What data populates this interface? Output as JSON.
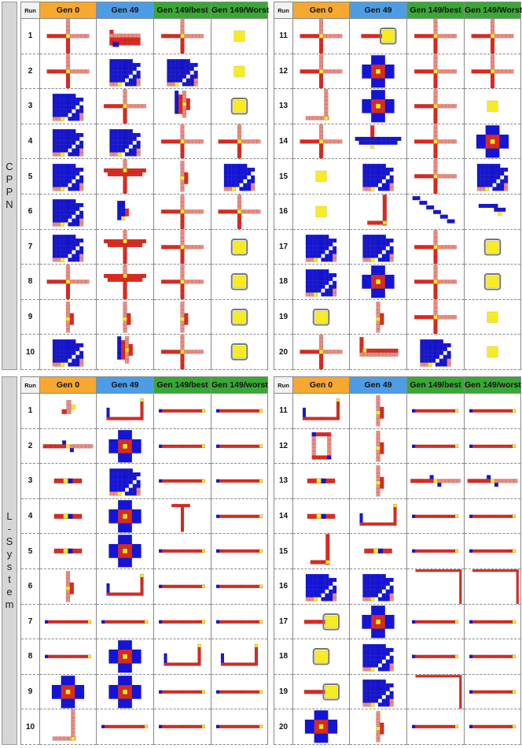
{
  "columns": {
    "cppn": [
      "Run",
      "Gen 0",
      "Gen 49",
      "Gen 149/best",
      "Gen 149/Worst"
    ],
    "lsystem": [
      "Run",
      "Gen 0",
      "Gen 49",
      "Gen 149/best",
      "Gen 149/worst"
    ]
  },
  "colors": {
    "gen0": "#f6a830",
    "gen49": "#4d9de6",
    "gen149": "#39a835",
    "red": "#e0281e",
    "pink": "#ee8a7e",
    "blue": "#1414d8",
    "yellow": "#f7ec22"
  },
  "sections": [
    {
      "id": "cppn",
      "label_letters": [
        "C",
        "P",
        "P",
        "N"
      ],
      "halves": [
        {
          "runs": [
            "1",
            "2",
            "3",
            "4",
            "5",
            "6",
            "7",
            "8",
            "9",
            "10"
          ],
          "cells": [
            [
              "cross",
              "bar-l",
              "cross",
              "core"
            ],
            [
              "cross",
              "blob-b",
              "blob-b",
              "core"
            ],
            [
              "blob-b",
              "cross",
              "twist",
              "frame"
            ],
            [
              "blob-b",
              "blob-b",
              "cross",
              "cross"
            ],
            [
              "blob-b",
              "tee",
              "bar-v",
              "blob-b"
            ],
            [
              "blob-b",
              "blob-y",
              "cross",
              "cross"
            ],
            [
              "blob-b",
              "tee",
              "cross",
              "frame"
            ],
            [
              "cross",
              "tee",
              "cross",
              "frame"
            ],
            [
              "bar-v",
              "bar-v",
              "bar-v",
              "frame"
            ],
            [
              "blob-b",
              "twist",
              "cross",
              "frame"
            ]
          ]
        },
        {
          "runs": [
            "11",
            "12",
            "13",
            "14",
            "15",
            "16",
            "17",
            "18",
            "19",
            "20"
          ],
          "cells": [
            [
              "cross",
              "frame-bar",
              "cross",
              "cross"
            ],
            [
              "cross",
              "plus-b",
              "cross",
              "cross"
            ],
            [
              "ell",
              "plus-b",
              "cross",
              "core"
            ],
            [
              "cross",
              "bar-b",
              "cross",
              "plus-b"
            ],
            [
              "core",
              "blob-b",
              "cross",
              "blob-b"
            ],
            [
              "core",
              "ell-r",
              "diag",
              "diag-s"
            ],
            [
              "blob-b",
              "blob-b",
              "cross",
              "frame"
            ],
            [
              "blob-b",
              "plus-b",
              "cross",
              "frame"
            ],
            [
              "frame",
              "bar-v",
              "cross",
              "core"
            ],
            [
              "cross",
              "tee-r",
              "blob-b",
              "core"
            ]
          ]
        }
      ]
    },
    {
      "id": "lsystem",
      "label_letters": [
        "L",
        "-",
        "S",
        "y",
        "s",
        "t",
        "e",
        "m"
      ],
      "halves": [
        {
          "runs": [
            "1",
            "2",
            "3",
            "4",
            "5",
            "6",
            "7",
            "8",
            "9",
            "10"
          ],
          "cells": [
            [
              "ell-s",
              "hook",
              "rail",
              "rail"
            ],
            [
              "cross-h",
              "plus-b",
              "rail",
              "rail"
            ],
            [
              "bar-h",
              "blob-b",
              "rail",
              "rail"
            ],
            [
              "bar-h",
              "plus-b",
              "tee-d",
              "rail"
            ],
            [
              "bar-h",
              "plus-b",
              "rail",
              "rail"
            ],
            [
              "bar-v",
              "hook",
              "rail",
              "rail"
            ],
            [
              "rail",
              "rail",
              "rail",
              "rail"
            ],
            [
              "rail",
              "plus-b",
              "hook",
              "hook"
            ],
            [
              "plus-b",
              "plus-b",
              "rail",
              "rail"
            ],
            [
              "ell",
              "rail",
              "rail",
              "rail"
            ]
          ]
        },
        {
          "runs": [
            "11",
            "12",
            "13",
            "14",
            "15",
            "16",
            "17",
            "18",
            "19",
            "20"
          ],
          "cells": [
            [
              "hook",
              "bar-v",
              "rail",
              "rail"
            ],
            [
              "ring",
              "bar-v",
              "rail",
              "rail"
            ],
            [
              "bar-h",
              "bar-v",
              "cross-h",
              "cross-h"
            ],
            [
              "bar-h",
              "hook",
              "rail",
              "rail"
            ],
            [
              "ell-r",
              "bar-h",
              "rail",
              "rail"
            ],
            [
              "blob-b",
              "blob-b",
              "ell-c",
              "ell-c"
            ],
            [
              "frame-bar",
              "plus-b",
              "rail",
              "rail"
            ],
            [
              "frame",
              "blob-b",
              "rail",
              "rail"
            ],
            [
              "frame-bar",
              "blob-b",
              "ell-c",
              "rail"
            ],
            [
              "plus-b",
              "bar-v",
              "rail",
              "rail"
            ]
          ]
        }
      ]
    }
  ]
}
